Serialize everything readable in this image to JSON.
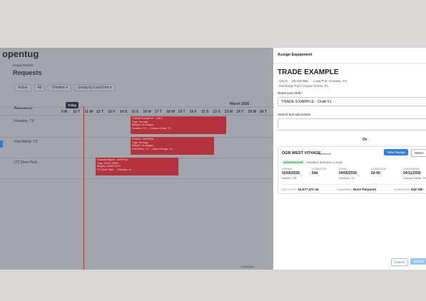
{
  "app": {
    "logo": "opentug",
    "breadcrumb": "Cargo Planner",
    "title": "Requests",
    "filters": [
      "Active",
      "All",
      "Timeline ▾",
      "Group by Load Port ▾"
    ]
  },
  "gantt": {
    "resource_header": "Resource",
    "month": "March 2026",
    "today": "Today",
    "days": [
      "9 M",
      "10 T",
      "11 W",
      "12 T",
      "13 F",
      "14 S",
      "15 S",
      "16 M",
      "17 T",
      "18 W",
      "19 T",
      "20 F",
      "21 S",
      "22 S",
      "23 M",
      "24 T",
      "25 W",
      "26 T"
    ],
    "rows": [
      "Houston, TX",
      "Port Arthur, TX",
      "ITC Deer Park"
    ],
    "bars": [
      [
        "TRADE EXAMPLE - USLD",
        "Tugs: No tugs",
        "Barges: No barges",
        "Houston, TX → Corpus Christi, TX"
      ],
      [
        "ESANA - MAPFNA",
        "Tugs: No tugs",
        "Barges: No barges",
        "Port Arthur, TX → Baton Rouge, LA"
      ],
      [
        "Example Bignel - MAPFNA",
        "Tugs: SHIFL HMFL",
        "Barges: KNMF 2013",
        "ITC Deer Park → Geismar, LA"
      ]
    ]
  },
  "panel": {
    "header": "Assign Equipment",
    "title": "TRADE EXAMPLE",
    "meta": [
      "USLD",
      "50,000 BBL",
      "Load Port: Houston, TX",
      "Discharge Port: Corpus Christi, TX"
    ],
    "draft_label": "Name your draft *",
    "draft_value": "TRADE EXAMPLE - Draft #1",
    "search_label": "Search and add assets",
    "or": "Or",
    "card": {
      "voyage": "OGB WEST VOYAGE",
      "tag": "Dedicated",
      "view": "View Voyage",
      "select": "Select",
      "vessel": "ASSATEAGUE",
      "spec": "DOUBLE SKIN 601 // USLB",
      "legs": [
        [
          "ORIGIN",
          "02/06/2026",
          "Astoria, OR"
        ],
        [
          "DURATION",
          "54d",
          ""
        ],
        [
          "LOAD",
          "04/05/2026",
          "Houston, TX"
        ],
        [
          "DURATION",
          "2d 6h",
          ""
        ],
        [
          "DISCHARGE",
          "04/11/2026",
          "Corpus Christi, TX"
        ]
      ],
      "cost_label": "EST. COST:",
      "cost": "$1,577,107.44",
      "cleaning_label": "CLEANING:",
      "cleaning": "None Required",
      "duration_label": "DURATION:",
      "duration": "64d 18h"
    },
    "cancel": "Cancel",
    "submit": "Submit"
  }
}
